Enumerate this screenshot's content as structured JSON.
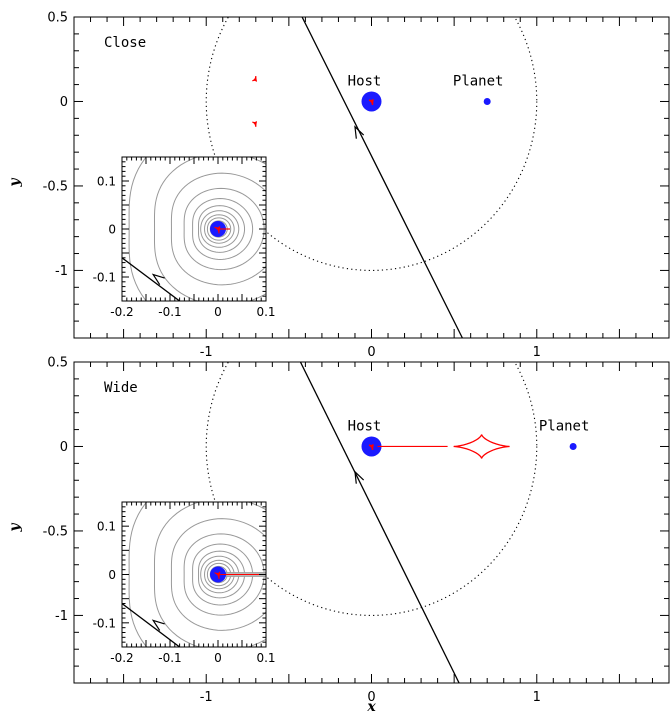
{
  "chart_data": [
    {
      "type": "scatter",
      "panel_label": "Close",
      "xlabel": "",
      "ylabel": "y",
      "xlim": [
        -1.8,
        1.8
      ],
      "ylim": [
        -1.4,
        0.5
      ],
      "xticks": [
        -1,
        0,
        1
      ],
      "yticks": [
        0.5,
        0,
        -0.5,
        -1
      ],
      "host": {
        "label": "Host",
        "x": 0,
        "y": 0
      },
      "planet": {
        "label": "Planet",
        "x": 0.7,
        "y": 0
      },
      "einstein_ring_radius": 1.0,
      "source_trajectory": {
        "x": [
          -0.42,
          0.55
        ],
        "y": [
          0.5,
          -1.4
        ],
        "arrow_at": [
          -0.1,
          -0.15
        ]
      },
      "planetary_caustics": [
        {
          "x": -0.7,
          "y": 0.13
        },
        {
          "x": -0.7,
          "y": -0.13
        }
      ],
      "inset": {
        "xlim": [
          -0.2,
          0.1
        ],
        "ylim": [
          -0.15,
          0.15
        ],
        "xticks": [
          -0.2,
          -0.1,
          0,
          0.1
        ],
        "yticks": [
          0.1,
          0,
          -0.1
        ],
        "trajectory": {
          "x": [
            -0.2,
            -0.08
          ],
          "y": [
            -0.06,
            -0.15
          ],
          "arrow_at": [
            -0.135,
            -0.095
          ]
        }
      },
      "colors": {
        "lens": "#1a1aff",
        "caustic": "#ff0000",
        "contour": "#999999"
      }
    },
    {
      "type": "scatter",
      "panel_label": "Wide",
      "xlabel": "x",
      "ylabel": "y",
      "xlim": [
        -1.8,
        1.8
      ],
      "ylim": [
        -1.4,
        0.5
      ],
      "xticks": [
        -1,
        0,
        1
      ],
      "yticks": [
        0.5,
        0,
        -0.5,
        -1
      ],
      "host": {
        "label": "Host",
        "x": 0,
        "y": 0
      },
      "planet": {
        "label": "Planet",
        "x": 1.22,
        "y": 0
      },
      "einstein_ring_radius": 1.0,
      "source_trajectory": {
        "x": [
          -0.43,
          0.53
        ],
        "y": [
          0.5,
          -1.4
        ],
        "arrow_at": [
          -0.1,
          -0.15
        ]
      },
      "planetary_caustics": [
        {
          "x": 0.4,
          "y": 0
        }
      ],
      "inset": {
        "xlim": [
          -0.2,
          0.1
        ],
        "ylim": [
          -0.15,
          0.15
        ],
        "xticks": [
          -0.2,
          -0.1,
          0,
          0.1
        ],
        "yticks": [
          0.1,
          0,
          -0.1
        ],
        "trajectory": {
          "x": [
            -0.2,
            -0.08
          ],
          "y": [
            -0.06,
            -0.15
          ],
          "arrow_at": [
            -0.135,
            -0.095
          ]
        }
      },
      "colors": {
        "lens": "#1a1aff",
        "caustic": "#ff0000",
        "contour": "#999999"
      }
    }
  ]
}
